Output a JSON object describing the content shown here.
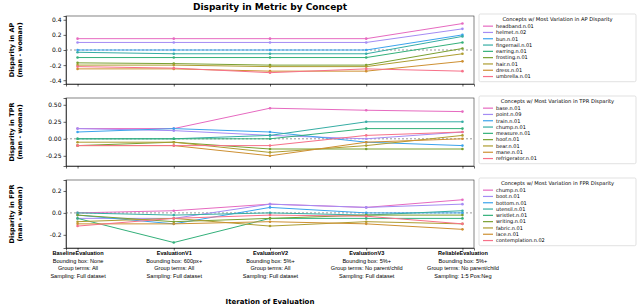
{
  "chart_data": [
    {
      "type": "line",
      "title": "Disparity in Metric by Concept",
      "y_label": "Disparity in AP\n(man - woman)",
      "legend_title": "Concepts w/ Most Variation in AP Disparity",
      "legend": "right",
      "marker": "circle",
      "categories": [
        null,
        null,
        null,
        null,
        null
      ],
      "ylim": [
        -0.45,
        0.45
      ],
      "yticks": [
        {
          "value": -0.4,
          "label": "-0.4"
        },
        {
          "value": -0.2,
          "label": "-0.2"
        },
        {
          "value": 0,
          "label": "0.0"
        },
        {
          "value": 0.2,
          "label": "0.2"
        },
        {
          "value": 0.4,
          "label": "0.4"
        }
      ],
      "reference_line": 0,
      "series": [
        {
          "name": "headband.n.01",
          "color": "#e66ac0",
          "values": [
            0.15,
            0.15,
            0.15,
            0.15,
            0.35
          ]
        },
        {
          "name": "helmet.n.02",
          "color": "#a48cf4",
          "values": [
            0.1,
            0.1,
            0.1,
            0.1,
            0.28
          ]
        },
        {
          "name": "bun.n.01",
          "color": "#3ba3ec",
          "values": [
            0.0,
            0.0,
            0.0,
            0.0,
            0.2
          ]
        },
        {
          "name": "fingernail.n.01",
          "color": "#36ada4",
          "values": [
            -0.03,
            -0.05,
            -0.05,
            -0.05,
            0.18
          ]
        },
        {
          "name": "earring.n.01",
          "color": "#33b07a",
          "values": [
            -0.1,
            -0.1,
            -0.1,
            -0.1,
            0.1
          ]
        },
        {
          "name": "frosting.n.01",
          "color": "#7aa031",
          "values": [
            -0.17,
            -0.18,
            -0.2,
            -0.2,
            0.02
          ]
        },
        {
          "name": "hair.n.01",
          "color": "#ae9d31",
          "values": [
            -0.2,
            -0.2,
            -0.22,
            -0.22,
            -0.05
          ]
        },
        {
          "name": "dress.n.01",
          "color": "#ce9032",
          "values": [
            -0.25,
            -0.25,
            -0.28,
            -0.28,
            -0.15
          ]
        },
        {
          "name": "umbrella.n.01",
          "color": "#f77189",
          "values": [
            -0.22,
            -0.24,
            -0.3,
            -0.25,
            -0.28
          ]
        }
      ]
    },
    {
      "type": "line",
      "y_label": "Disparity in TPR\n(man - woman)",
      "legend_title": "Concepts w/ Most Variation in TPR Disparity",
      "legend": "right",
      "marker": "circle",
      "categories": [
        null,
        null,
        null,
        null,
        null
      ],
      "ylim": [
        -0.4,
        0.6
      ],
      "yticks": [
        {
          "value": -0.25,
          "label": "-0.25"
        },
        {
          "value": 0,
          "label": "0.00"
        },
        {
          "value": 0.25,
          "label": "0.25"
        },
        {
          "value": 0.5,
          "label": "0.50"
        }
      ],
      "reference_line": 0,
      "series": [
        {
          "name": "base.n.01",
          "color": "#e66ac0",
          "values": [
            0.15,
            0.15,
            0.45,
            0.42,
            0.4
          ]
        },
        {
          "name": "point.n.09",
          "color": "#a48cf4",
          "values": [
            0.15,
            0.12,
            0.05,
            0.0,
            0.1
          ]
        },
        {
          "name": "train.n.01",
          "color": "#3ba3ec",
          "values": [
            0.1,
            0.15,
            0.1,
            -0.05,
            -0.1
          ]
        },
        {
          "name": "chump.n.01",
          "color": "#36ada4",
          "values": [
            0.0,
            0.0,
            0.05,
            0.25,
            0.25
          ]
        },
        {
          "name": "measure.n.01",
          "color": "#33b07a",
          "values": [
            0.0,
            0.0,
            0.0,
            0.15,
            0.15
          ]
        },
        {
          "name": "hoof.n.01",
          "color": "#7aa031",
          "values": [
            -0.1,
            -0.05,
            -0.15,
            -0.15,
            -0.15
          ]
        },
        {
          "name": "bear.n.01",
          "color": "#ae9d31",
          "values": [
            -0.05,
            -0.05,
            -0.2,
            -0.1,
            0.05
          ]
        },
        {
          "name": "mane.n.01",
          "color": "#ce9032",
          "values": [
            -0.1,
            -0.1,
            -0.25,
            -0.05,
            0.0
          ]
        },
        {
          "name": "refrigerator.n.01",
          "color": "#f77189",
          "values": [
            -0.1,
            -0.1,
            -0.1,
            0.05,
            0.1
          ]
        }
      ]
    },
    {
      "type": "line",
      "y_label": "Disparity in FPR\n(man - woman)",
      "x_label": "Iteration of Evaluation",
      "legend_title": "Concepts w/ Most Variation in FPR Disparity",
      "legend": "right",
      "marker": "circle",
      "categories": [
        "BaselineEvaluation\nBounding box: None\nGroup terms: All\nSampling: Full dataset",
        "EvaluationV1\nBounding box: 600px+\nGroup terms: All\nSampling: Full dataset",
        "EvaluationV2\nBounding box: 5%+\nGroup terms: All\nSampling: Full dataset",
        "EvaluationV3\nBounding box: 5%+\nGroup terms: No parent/child\nSampling: Full dataset",
        "ReliableEvaluation\nBounding box: 5%+\nGroup terms: No parent/child\nSampling: 1:5 Pos:Neg"
      ],
      "ylim": [
        -0.32,
        0.3
      ],
      "yticks": [
        {
          "value": -0.2,
          "label": "-0.2"
        },
        {
          "value": 0,
          "label": "0.0"
        },
        {
          "value": 0.2,
          "label": "0.2"
        }
      ],
      "reference_line": 0,
      "series": [
        {
          "name": "chump.n.01",
          "color": "#e66ac0",
          "values": [
            0.0,
            0.02,
            0.08,
            0.05,
            0.12
          ]
        },
        {
          "name": "boot.n.01",
          "color": "#a48cf4",
          "values": [
            -0.05,
            -0.05,
            0.08,
            0.05,
            0.08
          ]
        },
        {
          "name": "bottom.n.01",
          "color": "#3ba3ec",
          "values": [
            -0.02,
            -0.1,
            0.05,
            0.0,
            0.0
          ]
        },
        {
          "name": "utensil.n.01",
          "color": "#36ada4",
          "values": [
            0.0,
            -0.02,
            0.0,
            -0.02,
            0.02
          ]
        },
        {
          "name": "wristlet.n.01",
          "color": "#33b07a",
          "values": [
            -0.05,
            -0.27,
            -0.05,
            -0.05,
            -0.05
          ]
        },
        {
          "name": "writing.n.01",
          "color": "#7aa031",
          "values": [
            -0.02,
            -0.08,
            -0.05,
            -0.02,
            -0.02
          ]
        },
        {
          "name": "fabric.n.01",
          "color": "#ae9d31",
          "values": [
            -0.08,
            -0.05,
            -0.12,
            -0.08,
            -0.1
          ]
        },
        {
          "name": "lace.n.01",
          "color": "#ce9032",
          "values": [
            -0.1,
            -0.1,
            -0.08,
            -0.1,
            -0.15
          ]
        },
        {
          "name": "contemplation.n.02",
          "color": "#f77189",
          "values": [
            -0.12,
            -0.05,
            -0.02,
            -0.03,
            -0.1
          ]
        }
      ]
    }
  ]
}
